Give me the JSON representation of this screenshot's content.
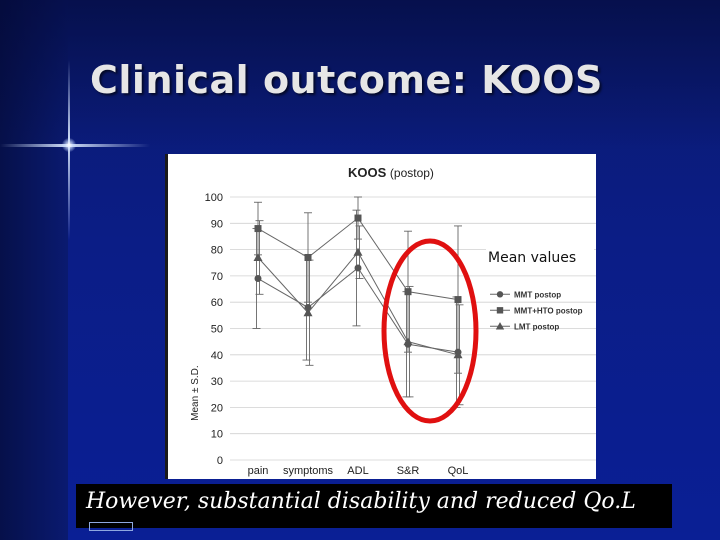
{
  "slide": {
    "title": "Clinical outcome: KOOS",
    "caption": "However, substantial disability and reduced Qo.L"
  },
  "chart_data": {
    "type": "line",
    "title": "KOOS",
    "title_suffix": "(postop)",
    "ylabel": "Mean ± S.D.",
    "xlabel": "",
    "categories": [
      "pain",
      "symptoms",
      "ADL",
      "S&R",
      "QoL"
    ],
    "ylim": [
      0,
      100
    ],
    "yticks": [
      0,
      10,
      20,
      30,
      40,
      50,
      60,
      70,
      80,
      90,
      100
    ],
    "grid": true,
    "legend_position": "right",
    "annotation": "Mean values",
    "highlight": "S&R and QoL encircled in red",
    "series": [
      {
        "name": "MMT postop",
        "marker": "circle",
        "values": [
          69,
          58,
          73,
          44,
          41
        ],
        "sd": [
          19,
          20,
          22,
          20,
          21
        ]
      },
      {
        "name": "MMT+HTO postop",
        "marker": "square",
        "values": [
          88,
          77,
          92,
          64,
          61
        ],
        "sd": [
          10,
          17,
          8,
          23,
          28
        ]
      },
      {
        "name": "LMT postop",
        "marker": "triangle",
        "values": [
          77,
          56,
          79,
          45,
          40
        ],
        "sd": [
          14,
          20,
          10,
          21,
          19
        ]
      }
    ]
  }
}
